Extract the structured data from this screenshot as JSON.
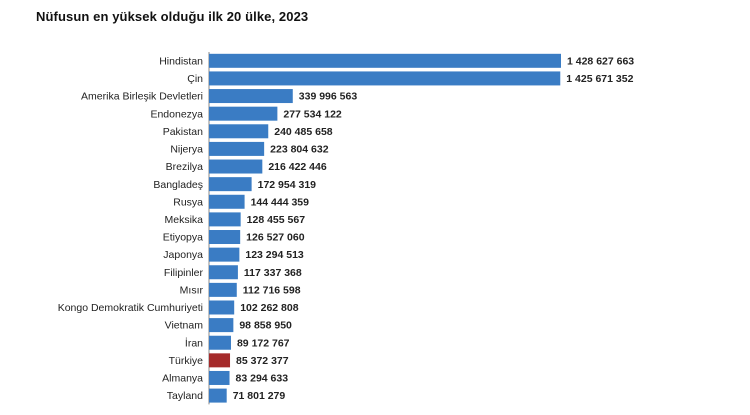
{
  "chart_data": {
    "type": "bar",
    "orientation": "horizontal",
    "title": "Nüfusun en yüksek olduğu ilk 20 ülke, 2023",
    "xlabel": "",
    "ylabel": "",
    "grid": false,
    "legend": "none",
    "categories": [
      "Hindistan",
      "Çin",
      "Amerika Birleşik Devletleri",
      "Endonezya",
      "Pakistan",
      "Nijerya",
      "Brezilya",
      "Bangladeş",
      "Rusya",
      "Meksika",
      "Etiyopya",
      "Japonya",
      "Filipinler",
      "Mısır",
      "Kongo Demokratik Cumhuriyeti",
      "Vietnam",
      "İran",
      "Türkiye",
      "Almanya",
      "Tayland"
    ],
    "values": [
      1428627663,
      1425671352,
      339996563,
      277534122,
      240485658,
      223804632,
      216422446,
      172954319,
      144444359,
      128455567,
      126527060,
      123294513,
      117337368,
      112716598,
      102262808,
      98858950,
      89172767,
      85372377,
      83294633,
      71801279
    ],
    "value_labels": [
      "1 428 627 663",
      "1 425 671 352",
      "339 996 563",
      "277 534 122",
      "240 485 658",
      "223 804 632",
      "216 422 446",
      "172 954 319",
      "144 444 359",
      "128 455 567",
      "126 527 060",
      "123 294 513",
      "117 337 368",
      "112 716 598",
      "102 262 808",
      "98 858 950",
      "89 172 767",
      "85 372 377",
      "83 294 633",
      "71 801 279"
    ],
    "highlight_category": "Türkiye",
    "colors": {
      "bar": "#3A7CC4",
      "highlight": "#A52A2A",
      "axis": "#888888"
    }
  }
}
